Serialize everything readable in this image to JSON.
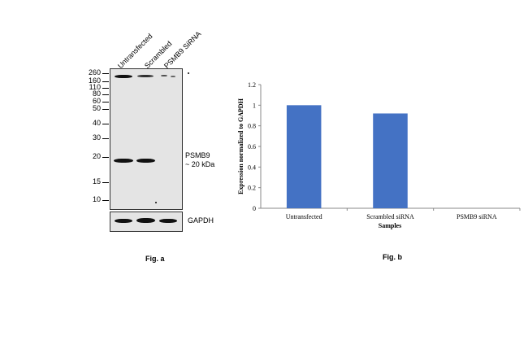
{
  "fig_a": {
    "lanes": [
      "Untransfected",
      "Scrambled",
      "PSMB9 SiRNA"
    ],
    "mw_markers": [
      "260",
      "160",
      "110",
      "80",
      "60",
      "50",
      "40",
      "30",
      "20",
      "15",
      "10"
    ],
    "target_label": "PSMB9",
    "target_size": "~ 20 kDa",
    "loading_control": "GAPDH",
    "caption": "Fig. a"
  },
  "fig_b": {
    "caption": "Fig. b"
  },
  "chart_data": {
    "type": "bar",
    "categories": [
      "Untransfected",
      "Scrambled siRNA",
      "PSMB9 siRNA"
    ],
    "values": [
      1.0,
      0.92,
      0.0
    ],
    "title": "",
    "xlabel": "Samples",
    "ylabel": "Expression normalized to GAPDH",
    "ylim": [
      0,
      1.2
    ],
    "yticks": [
      "0",
      "0.2",
      "0.4",
      "0.6",
      "0.8",
      "1",
      "1.2"
    ],
    "bar_color": "#4472c4",
    "grid": false,
    "legend": "none"
  }
}
